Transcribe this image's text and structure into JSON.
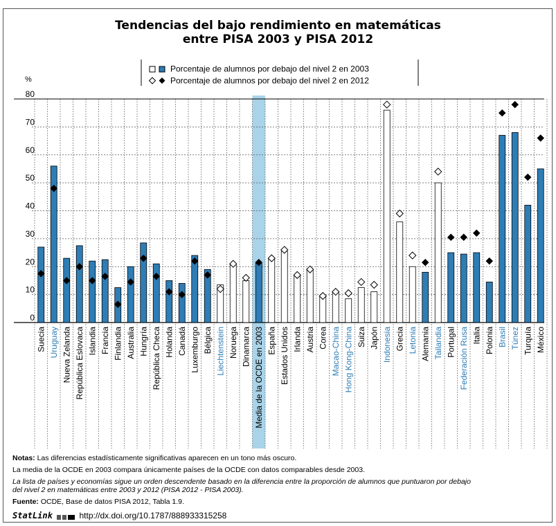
{
  "title": {
    "line1": "Tendencias del bajo rendimiento en matemáticas",
    "line2": "entre PISA 2003 y PISA 2012"
  },
  "legend": {
    "label_2003": "Porcentaje de alumnos por debajo del nivel 2 en 2003",
    "label_2012": "Porcentaje de alumnos por debajo del nivel 2 en 2012"
  },
  "colors": {
    "significant": "#2E7DB5",
    "non_significant": "#ffffff",
    "highlight": "#A9D3E8",
    "partner_label": "#2E7DB5"
  },
  "chart_data": {
    "type": "bar",
    "ylabel": "%",
    "ylim": [
      0,
      80
    ],
    "yticks": [
      0,
      10,
      20,
      30,
      40,
      50,
      60,
      70,
      80
    ],
    "grid": true,
    "legend_position": "top-right",
    "highlight_category": "Media de la OCDE en 2003",
    "series": [
      {
        "name": "Porcentaje de alumnos por debajo del nivel 2 en 2003",
        "mark": "bar"
      },
      {
        "name": "Porcentaje de alumnos por debajo del nivel 2 en 2012",
        "mark": "diamond"
      }
    ],
    "categories": [
      {
        "name": "Suecia",
        "v2003": 27,
        "v2012": 17.5,
        "sig": true,
        "partner": false
      },
      {
        "name": "Uruguay",
        "v2003": 56,
        "v2012": 48,
        "sig": true,
        "partner": true
      },
      {
        "name": "Nueva Zelanda",
        "v2003": 23,
        "v2012": 15,
        "sig": true,
        "partner": false
      },
      {
        "name": "República Eslovaca",
        "v2003": 27.5,
        "v2012": 20,
        "sig": true,
        "partner": false
      },
      {
        "name": "Islandia",
        "v2003": 22,
        "v2012": 15,
        "sig": true,
        "partner": false
      },
      {
        "name": "Francia",
        "v2003": 22.5,
        "v2012": 16.5,
        "sig": true,
        "partner": false
      },
      {
        "name": "Finlandia",
        "v2003": 12.5,
        "v2012": 6.5,
        "sig": true,
        "partner": false
      },
      {
        "name": "Australia",
        "v2003": 20,
        "v2012": 14.5,
        "sig": true,
        "partner": false
      },
      {
        "name": "Hungría",
        "v2003": 28.5,
        "v2012": 23,
        "sig": true,
        "partner": false
      },
      {
        "name": "República Checa",
        "v2003": 21,
        "v2012": 16.5,
        "sig": true,
        "partner": false
      },
      {
        "name": "Holanda",
        "v2003": 15,
        "v2012": 11,
        "sig": true,
        "partner": false
      },
      {
        "name": "Canadá",
        "v2003": 14,
        "v2012": 10,
        "sig": true,
        "partner": false
      },
      {
        "name": "Luxemburgo",
        "v2003": 24,
        "v2012": 22,
        "sig": true,
        "partner": false
      },
      {
        "name": "Bélgica",
        "v2003": 19,
        "v2012": 17,
        "sig": true,
        "partner": false
      },
      {
        "name": "Liechtenstein",
        "v2003": 13.5,
        "v2012": 12,
        "sig": false,
        "partner": true
      },
      {
        "name": "Noruega",
        "v2003": 21,
        "v2012": 21,
        "sig": false,
        "partner": false
      },
      {
        "name": "Dinamarca",
        "v2003": 15,
        "v2012": 16,
        "sig": false,
        "partner": false
      },
      {
        "name": "Media de la OCDE en 2003",
        "v2003": 21.5,
        "v2012": 21.5,
        "sig": true,
        "partner": false
      },
      {
        "name": "España",
        "v2003": 23,
        "v2012": 23,
        "sig": false,
        "partner": false
      },
      {
        "name": "Estados Unidos",
        "v2003": 25.5,
        "v2012": 26,
        "sig": false,
        "partner": false
      },
      {
        "name": "Irlanda",
        "v2003": 17,
        "v2012": 17,
        "sig": false,
        "partner": false
      },
      {
        "name": "Austria",
        "v2003": 19,
        "v2012": 19,
        "sig": false,
        "partner": false
      },
      {
        "name": "Corea",
        "v2003": 9.5,
        "v2012": 9.5,
        "sig": false,
        "partner": false
      },
      {
        "name": "Macao-China",
        "v2003": 11,
        "v2012": 11,
        "sig": false,
        "partner": true
      },
      {
        "name": "Hong Kong-China",
        "v2003": 8.5,
        "v2012": 10.5,
        "sig": false,
        "partner": true
      },
      {
        "name": "Suiza",
        "v2003": 12.5,
        "v2012": 14.5,
        "sig": false,
        "partner": false
      },
      {
        "name": "Japón",
        "v2003": 11,
        "v2012": 13.5,
        "sig": false,
        "partner": false
      },
      {
        "name": "Indonesia",
        "v2003": 76,
        "v2012": 78,
        "sig": false,
        "partner": true
      },
      {
        "name": "Grecia",
        "v2003": 36,
        "v2012": 39,
        "sig": false,
        "partner": false
      },
      {
        "name": "Letonia",
        "v2003": 20,
        "v2012": 24,
        "sig": false,
        "partner": true
      },
      {
        "name": "Alemania",
        "v2003": 18,
        "v2012": 21.5,
        "sig": true,
        "partner": false
      },
      {
        "name": "Tailandia",
        "v2003": 50,
        "v2012": 54,
        "sig": false,
        "partner": true
      },
      {
        "name": "Portugal",
        "v2003": 25,
        "v2012": 30.5,
        "sig": true,
        "partner": false
      },
      {
        "name": "Federación Rusa",
        "v2003": 24.5,
        "v2012": 30.5,
        "sig": true,
        "partner": true
      },
      {
        "name": "Italia",
        "v2003": 25,
        "v2012": 32,
        "sig": true,
        "partner": false
      },
      {
        "name": "Polonia",
        "v2003": 14.5,
        "v2012": 22,
        "sig": true,
        "partner": false
      },
      {
        "name": "Brasil",
        "v2003": 67,
        "v2012": 75,
        "sig": true,
        "partner": true
      },
      {
        "name": "Túnez",
        "v2003": 68,
        "v2012": 78,
        "sig": true,
        "partner": true
      },
      {
        "name": "Turquía",
        "v2003": 42,
        "v2012": 52,
        "sig": true,
        "partner": false
      },
      {
        "name": "México",
        "v2003": 55,
        "v2012": 66,
        "sig": true,
        "partner": false
      }
    ]
  },
  "notes": {
    "notas_label": "Notas:",
    "notas_text": " Las diferencias estadísticamente significativas aparecen en un tono más oscuro.",
    "line2": "La media de la OCDE en 2003 compara únicamente países de la OCDE con datos comparables desde 2003.",
    "line3": "La lista de países y economías sigue un orden descendente basado en la diferencia entre la proporción de alumnos que puntuaron por debajo",
    "line4": "del nivel 2 en matemáticas entre 2003 y 2012 (PISA 2012 - PISA 2003).",
    "fuente_label": "Fuente:",
    "fuente_text": " OCDE, Base de datos PISA 2012, Tabla 1.9.",
    "statlink_label": "StatLink",
    "statlink_url": "http://dx.doi.org/10.1787/888933315258"
  }
}
